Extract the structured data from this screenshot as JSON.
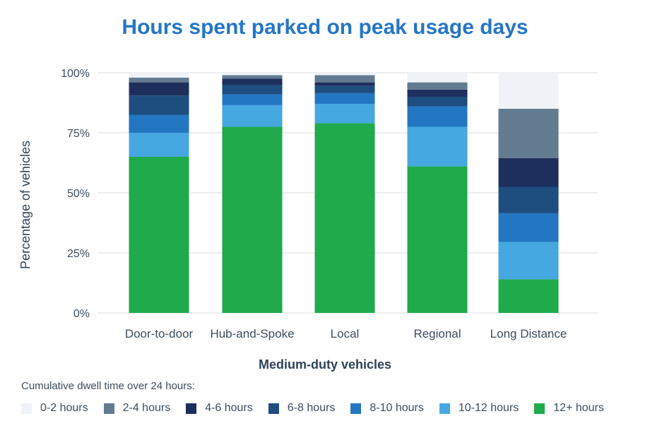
{
  "chart_data": {
    "type": "bar",
    "stacked": true,
    "title": "Hours spent parked on peak usage days",
    "xlabel": "Medium-duty vehicles",
    "ylabel": "Percentage of vehicles",
    "ylim": [
      0,
      100
    ],
    "yticks": [
      "0%",
      "25%",
      "50%",
      "75%",
      "100%"
    ],
    "grid": true,
    "categories": [
      "Door-to-door",
      "Hub-and-Spoke",
      "Local",
      "Regional",
      "Long Distance"
    ],
    "legend_title": "Cumulative dwell time over 24 hours:",
    "legend_position": "bottom",
    "series": [
      {
        "name": "12+ hours",
        "color": "#1faa4b",
        "values": [
          65,
          77.5,
          79,
          61,
          14
        ]
      },
      {
        "name": "10-12 hours",
        "color": "#45a8e0",
        "values": [
          10,
          9,
          8,
          16.5,
          15.5
        ]
      },
      {
        "name": "8-10 hours",
        "color": "#2377c2",
        "values": [
          7.5,
          4.5,
          4.5,
          8.5,
          12
        ]
      },
      {
        "name": "6-8 hours",
        "color": "#1e4d80",
        "values": [
          8,
          4,
          3,
          4,
          11
        ]
      },
      {
        "name": "4-6 hours",
        "color": "#1e2f5e",
        "values": [
          5.5,
          2.5,
          1.5,
          3,
          12
        ]
      },
      {
        "name": "2-4 hours",
        "color": "#637b90",
        "values": [
          2,
          1.5,
          3,
          3,
          20.5
        ]
      },
      {
        "name": "0-2 hours",
        "color": "#eff3f8",
        "values": [
          2,
          1,
          1,
          4,
          15
        ]
      }
    ]
  }
}
